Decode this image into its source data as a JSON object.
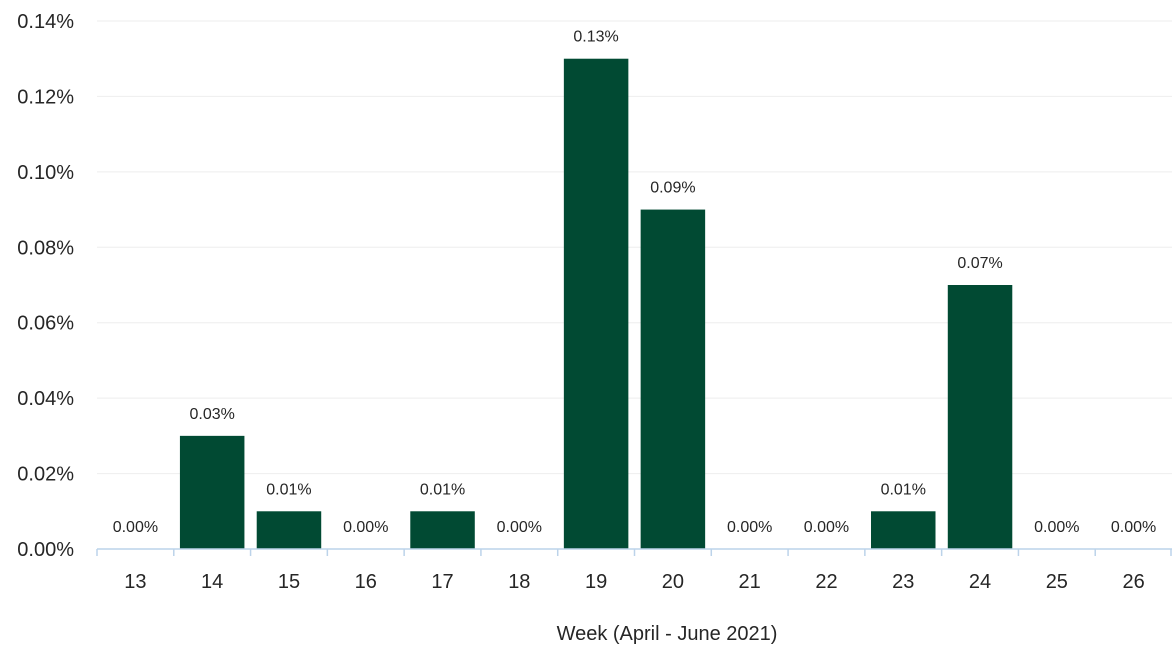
{
  "chart_data": {
    "type": "bar",
    "title": "",
    "xlabel": "Week (April - June 2021)",
    "ylabel": "",
    "categories": [
      "13",
      "14",
      "15",
      "16",
      "17",
      "18",
      "19",
      "20",
      "21",
      "22",
      "23",
      "24",
      "25",
      "26"
    ],
    "values": [
      0.0,
      0.03,
      0.01,
      0.0,
      0.01,
      0.0,
      0.13,
      0.09,
      0.0,
      0.0,
      0.01,
      0.07,
      0.0,
      0.0
    ],
    "data_labels": [
      "0.00%",
      "0.03%",
      "0.01%",
      "0.00%",
      "0.01%",
      "0.00%",
      "0.13%",
      "0.09%",
      "0.00%",
      "0.00%",
      "0.01%",
      "0.07%",
      "0.00%",
      "0.00%"
    ],
    "ylim": [
      0,
      0.14
    ],
    "yticks": [
      0,
      0.02,
      0.04,
      0.06,
      0.08,
      0.1,
      0.12,
      0.14
    ],
    "ytick_labels": [
      "0.00%",
      "0.02%",
      "0.04%",
      "0.06%",
      "0.08%",
      "0.10%",
      "0.12%",
      "0.14%"
    ],
    "grid": true,
    "legend": "none",
    "bar_color": "#014a33",
    "grid_color": "#eeeeee",
    "axis_color": "#bcd3ea"
  }
}
